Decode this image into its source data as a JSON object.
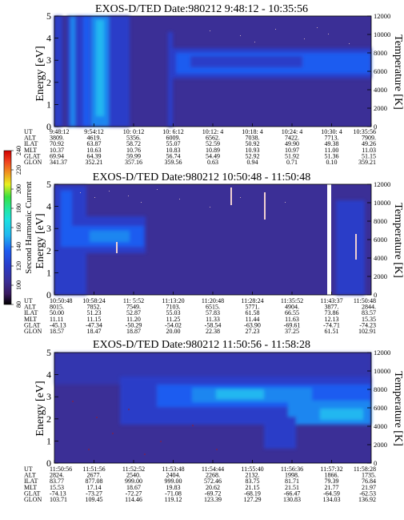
{
  "colors": {
    "background": "#3b2f96",
    "palette": [
      "#000000",
      "#3a1a60",
      "#3b2f96",
      "#2a3cc8",
      "#1e5cf0",
      "#1f86f0",
      "#20b7f0",
      "#1ce0e0",
      "#22e6a0",
      "#38e040",
      "#a0ec20",
      "#e8f020",
      "#f0c020",
      "#f09020",
      "#f04020",
      "#d00000"
    ]
  },
  "colorbar": {
    "label": "Second Harmonic Current",
    "ticks": [
      "80",
      "100",
      "120",
      "140",
      "160",
      "180",
      "200",
      "220",
      "240"
    ]
  },
  "chart_data": [
    {
      "type": "heatmap",
      "title": "EXOS-D/TED   Date:980212  9:48:12 - 10:35:56",
      "ylabel": "Energy [eV]",
      "ylabel_right": "Temperature [K]",
      "ylim": [
        0,
        5
      ],
      "y2lim": [
        0,
        12000
      ],
      "yticks": [
        "0",
        "1",
        "2",
        "3",
        "4",
        "5"
      ],
      "y2ticks": [
        "0",
        "2000",
        "4000",
        "6000",
        "8000",
        "10000",
        "12000"
      ],
      "row_labels": [
        "UT",
        "ALT",
        "ILAT",
        "MLT",
        "GLAT",
        "GLON"
      ],
      "x_columns": [
        [
          "9:48:12",
          "3809.",
          "70.92",
          "10.37",
          "69.94",
          "341.37"
        ],
        [
          "9:54:12",
          "4619.",
          "63.87",
          "10.63",
          "64.39",
          "352.21"
        ],
        [
          "10: 0:12",
          "5356.",
          "58.72",
          "10.76",
          "59.99",
          "357.16"
        ],
        [
          "10: 6:12",
          "6009.",
          "55.07",
          "10.83",
          "56.74",
          "359.56"
        ],
        [
          "10:12: 4",
          "6562.",
          "52.59",
          "10.89",
          "54.49",
          "0.63"
        ],
        [
          "10:18: 4",
          "7038.",
          "50.92",
          "10.93",
          "52.92",
          "0.94"
        ],
        [
          "10:24: 4",
          "7422.",
          "49.90",
          "10.97",
          "51.92",
          "0.71"
        ],
        [
          "10:30: 4",
          "7713.",
          "49.38",
          "11.00",
          "51.36",
          "0.10"
        ],
        [
          "10:35:56",
          "7909.",
          "49.26",
          "11.03",
          "51.15",
          "359.21"
        ]
      ]
    },
    {
      "type": "heatmap",
      "title": "EXOS-D/TED   Date:980212  10:50:48 - 11:50:48",
      "ylabel": "Energy [eV]",
      "ylabel_right": "Temperature [K]",
      "ylim": [
        0,
        5
      ],
      "y2lim": [
        0,
        12000
      ],
      "yticks": [
        "0",
        "1",
        "2",
        "3",
        "4",
        "5"
      ],
      "y2ticks": [
        "0",
        "2000",
        "4000",
        "6000",
        "8000",
        "10000",
        "12000"
      ],
      "row_labels": [
        "UT",
        "ALT",
        "ILAT",
        "MLT",
        "GLAT",
        "GLON"
      ],
      "x_columns": [
        [
          "10:50:48",
          "8015.",
          "50.00",
          "11.11",
          "-45.13",
          "18.57"
        ],
        [
          "10:58:24",
          "7852.",
          "51.23",
          "11.15",
          "-47.34",
          "18.47"
        ],
        [
          "11: 5:52",
          "7549.",
          "52.87",
          "11.20",
          "-50.29",
          "18.87"
        ],
        [
          "11:13:20",
          "7103.",
          "55.03",
          "11.25",
          "-54.02",
          "20.00"
        ],
        [
          "11:20:48",
          "6515.",
          "57.83",
          "11.33",
          "-58.54",
          "22.38"
        ],
        [
          "11:28:24",
          "5771.",
          "61.58",
          "11.44",
          "-63.90",
          "27.23"
        ],
        [
          "11:35:52",
          "4904.",
          "66.55",
          "11.63",
          "-69.61",
          "37.25"
        ],
        [
          "11:43:37",
          "3877.",
          "73.86",
          "12.13",
          "-74.71",
          "61.51"
        ],
        [
          "11:50:48",
          "2844.",
          "83.57",
          "15.35",
          "-74.23",
          "102.91"
        ]
      ]
    },
    {
      "type": "heatmap",
      "title": "EXOS-D/TED   Date:980212  11:50:56 - 11:58:28",
      "ylabel": "Energy [eV]",
      "ylabel_right": "Temperature [K]",
      "ylim": [
        0,
        5
      ],
      "y2lim": [
        0,
        12000
      ],
      "yticks": [
        "0",
        "1",
        "2",
        "3",
        "4",
        "5"
      ],
      "y2ticks": [
        "0",
        "2000",
        "4000",
        "6000",
        "8000",
        "10000",
        "12000"
      ],
      "row_labels": [
        "UT",
        "ALT",
        "ILAT",
        "MLT",
        "GLAT",
        "GLON"
      ],
      "x_columns": [
        [
          "11:50:56",
          "2824.",
          "83.77",
          "15.53",
          "-74.13",
          "103.71"
        ],
        [
          "11:51:56",
          "2677.",
          "877.08",
          "17.14",
          "-73.27",
          "109.45"
        ],
        [
          "11:52:52",
          "2540.",
          "999.00",
          "18.67",
          "-72.27",
          "114.46"
        ],
        [
          "11:53:48",
          "2404.",
          "999.00",
          "19.83",
          "-71.08",
          "119.12"
        ],
        [
          "11:54:44",
          "2268.",
          "572.46",
          "20.62",
          "-69.72",
          "123.39"
        ],
        [
          "11:55:40",
          "2132.",
          "83.75",
          "21.15",
          "-68.19",
          "127.29"
        ],
        [
          "11:56:36",
          "1998.",
          "81.71",
          "21.51",
          "-66.47",
          "130.83"
        ],
        [
          "11:57:32",
          "1866.",
          "79.39",
          "21.77",
          "-64.59",
          "134.03"
        ],
        [
          "11:58:28",
          "1735.",
          "76.84",
          "21.97",
          "-62.53",
          "136.92"
        ]
      ]
    }
  ]
}
